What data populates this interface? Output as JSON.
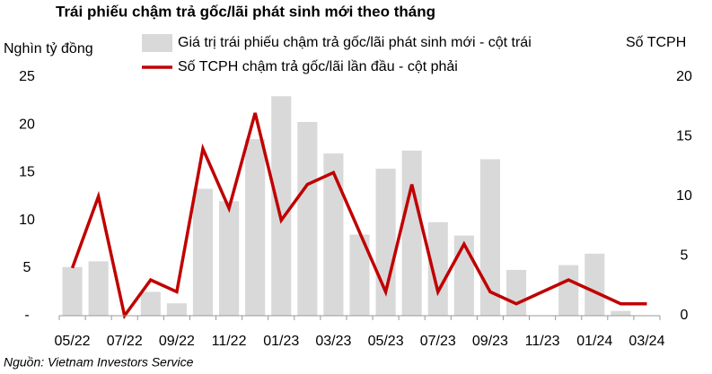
{
  "chart_data": {
    "type": "bar_line",
    "title": "Trái phiếu chậm trả gốc/lãi phát sinh mới theo tháng",
    "y_label": "Nghìn tỷ đồng",
    "y2_label": "Số TCPH",
    "source": "Nguồn: Vietnam Investors Service",
    "categories": [
      "05/22",
      null,
      "07/22",
      null,
      "09/22",
      null,
      "11/22",
      null,
      "01/23",
      null,
      "03/23",
      null,
      "05/23",
      null,
      "07/23",
      null,
      "09/23",
      null,
      "11/23",
      null,
      "01/24",
      null,
      "03/24"
    ],
    "series": [
      {
        "name": "Giá trị trái phiếu chậm trả gốc/lãi phát sinh mới - cột trái",
        "type": "bar",
        "color": "#d9d9d9",
        "values": [
          5.1,
          5.7,
          0,
          2.5,
          1.3,
          13.3,
          12.0,
          18.5,
          23.0,
          20.3,
          17.0,
          8.5,
          15.4,
          17.3,
          9.8,
          8.4,
          16.4,
          4.8,
          0,
          5.3,
          6.5,
          0.5,
          0
        ]
      },
      {
        "name": "Số TCPH chậm trả gốc/lãi lần đầu - cột phải",
        "type": "line",
        "axis": "y2",
        "color": "#c00000",
        "values": [
          4,
          10,
          0,
          3,
          2,
          14,
          9,
          17,
          8,
          11,
          12,
          7,
          2,
          11,
          2,
          6,
          2,
          1,
          2,
          3,
          2,
          1,
          1
        ]
      }
    ],
    "ylim": [
      0,
      25
    ],
    "yticks": [
      {
        "value": 0,
        "label": "-"
      },
      5,
      10,
      15,
      20,
      25
    ],
    "y2lim": [
      0,
      20
    ],
    "y2ticks": [
      0,
      5,
      10,
      15,
      20
    ]
  }
}
